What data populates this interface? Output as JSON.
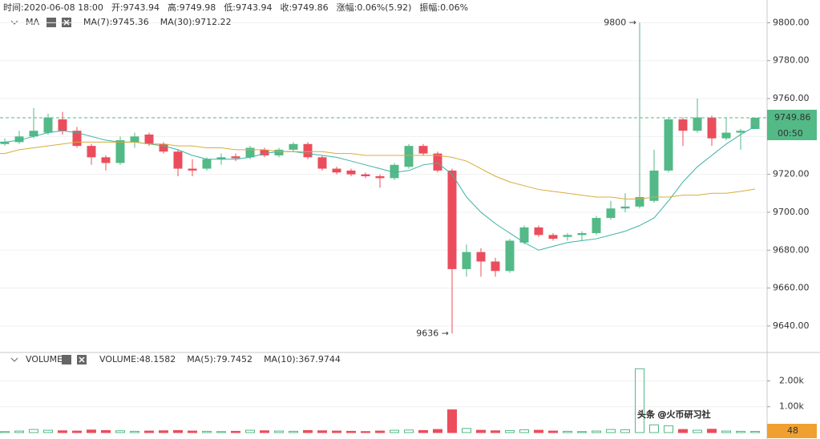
{
  "header": {
    "items": [
      "时间:2020-06-08 18:00",
      "开:9743.94",
      "高:9749.98",
      "低:9743.94",
      "收:9749.86",
      "涨幅:0.06%(5.92)",
      "振幅:0.06%"
    ]
  },
  "chart_data": [
    {
      "type": "candlestick",
      "legend_title": "MA",
      "up_color": "#53b987",
      "down_color": "#eb4d5c",
      "open": [
        9736,
        9737,
        9740,
        9742,
        9749,
        9743,
        9735,
        9729,
        9726,
        9737,
        9741,
        9736,
        9732,
        9723,
        9723,
        9728,
        9729.5,
        9729,
        9733,
        9730,
        9733,
        9736,
        9729,
        9723,
        9722,
        9720,
        9719,
        9718,
        9724,
        9735,
        9731,
        9722,
        9670,
        9679,
        9674,
        9669,
        9684,
        9692,
        9688,
        9687,
        9688,
        9689,
        9697,
        9702,
        9703,
        9706,
        9722,
        9749,
        9743,
        9750,
        9739,
        9742,
        9743.94
      ],
      "high": [
        9739,
        9743,
        9755,
        9752,
        9753,
        9745,
        9736,
        9730,
        9740,
        9742,
        9742,
        9737,
        9733,
        9728,
        9729,
        9731,
        9731,
        9735,
        9734,
        9734,
        9737,
        9737,
        9730,
        9724,
        9723,
        9721,
        9720,
        9726,
        9736,
        9736,
        9732,
        9723,
        9683,
        9681,
        9676,
        9686,
        9693,
        9693,
        9689,
        9689,
        9690,
        9698,
        9706,
        9710,
        9800,
        9733,
        9750,
        9750,
        9760,
        9751,
        9750,
        9744,
        9749.98
      ],
      "low": [
        9735,
        9736,
        9739,
        9741,
        9741,
        9734,
        9725,
        9722,
        9725,
        9734,
        9735,
        9731,
        9719,
        9719,
        9722,
        9725,
        9727,
        9728,
        9729,
        9729,
        9732,
        9728,
        9722,
        9720,
        9719,
        9718,
        9713,
        9717,
        9723,
        9730,
        9721,
        9636,
        9666,
        9666,
        9666,
        9668,
        9683,
        9687,
        9685,
        9685,
        9685,
        9688,
        9696,
        9700,
        9702,
        9705,
        9721,
        9735,
        9742,
        9735,
        9738,
        9733,
        9743.94
      ],
      "close": [
        9737,
        9740,
        9743,
        9750,
        9743,
        9735,
        9729,
        9726,
        9738,
        9740,
        9736,
        9732,
        9723,
        9722,
        9728,
        9729,
        9728.5,
        9734,
        9730,
        9733,
        9736,
        9729,
        9723,
        9721,
        9720,
        9719,
        9718,
        9725,
        9735,
        9731,
        9722,
        9670,
        9679,
        9674,
        9669,
        9685,
        9692,
        9688,
        9686,
        9688,
        9689,
        9697,
        9702,
        9703,
        9708,
        9722,
        9749,
        9743,
        9750,
        9739,
        9742,
        9743,
        9749.86
      ],
      "series": [
        {
          "name": "MA(7):9745.36",
          "color": "#3bb3a5",
          "values": [
            9737,
            9738,
            9740,
            9742,
            9743,
            9742,
            9740,
            9738,
            9737,
            9737,
            9736,
            9735,
            9733,
            9730,
            9728,
            9728,
            9728,
            9729,
            9731,
            9732,
            9732,
            9731,
            9730,
            9729,
            9727,
            9725,
            9723,
            9721,
            9722,
            9725,
            9726,
            9720,
            9708,
            9700,
            9694,
            9689,
            9684,
            9680,
            9682,
            9684,
            9685,
            9686,
            9688,
            9690,
            9693,
            9697,
            9706,
            9716,
            9724,
            9730,
            9736,
            9741,
            9745.36
          ]
        },
        {
          "name": "MA(30):9712.22",
          "color": "#d8ac3c",
          "values": [
            9731,
            9733,
            9734,
            9735,
            9736,
            9737,
            9737,
            9737,
            9737,
            9737,
            9736,
            9736,
            9735,
            9735,
            9734,
            9734,
            9733,
            9733,
            9733,
            9732,
            9732,
            9732,
            9732,
            9731,
            9731,
            9730,
            9730,
            9730,
            9730,
            9730,
            9730,
            9729,
            9727,
            9723,
            9719,
            9716,
            9714,
            9712,
            9711,
            9710,
            9709,
            9708,
            9708,
            9707,
            9707,
            9708,
            9708,
            9709,
            9709,
            9710,
            9710,
            9711,
            9712.22
          ]
        }
      ],
      "annotations": [
        "9800 →",
        "9636 →"
      ],
      "last_price": 9749.86,
      "last_price_label": "9749.86",
      "countdown": "00:50",
      "ylim": [
        9626,
        9812
      ],
      "yticks": [
        {
          "value": 9640,
          "label": "9640.00"
        },
        {
          "value": 9660,
          "label": "9660.00"
        },
        {
          "value": 9680,
          "label": "9680.00"
        },
        {
          "value": 9700,
          "label": "9700.00"
        },
        {
          "value": 9720,
          "label": "9720.00"
        },
        {
          "value": 9740,
          "label": "9740.00"
        },
        {
          "value": 9760,
          "label": "9760.00"
        },
        {
          "value": 9780,
          "label": "9780.00"
        },
        {
          "value": 9800,
          "label": "9800.00"
        }
      ],
      "grid": true
    },
    {
      "type": "bar",
      "legend_title": "VOLUME",
      "legend": [
        "VOLUME:48.1582",
        "MA(5):79.7452",
        "MA(10):367.9744"
      ],
      "legend_colors": [
        "#333333",
        "#3bb3a5",
        "#d8ac3c"
      ],
      "values": [
        40,
        60,
        120,
        90,
        70,
        60,
        100,
        80,
        70,
        50,
        60,
        70,
        80,
        60,
        50,
        40,
        50,
        90,
        70,
        60,
        50,
        80,
        70,
        60,
        50,
        40,
        60,
        90,
        100,
        80,
        120,
        880,
        160,
        90,
        70,
        80,
        110,
        90,
        60,
        50,
        40,
        60,
        120,
        110,
        2470,
        300,
        260,
        120,
        90,
        130,
        60,
        50,
        48.1582
      ],
      "last_label": "48",
      "ylim": [
        0,
        3100
      ],
      "yticks": [
        {
          "value": 1000,
          "label": "1.00k"
        },
        {
          "value": 2000,
          "label": "2.00k"
        }
      ],
      "grid": true
    }
  ],
  "watermark": "头条 @火币研习社"
}
